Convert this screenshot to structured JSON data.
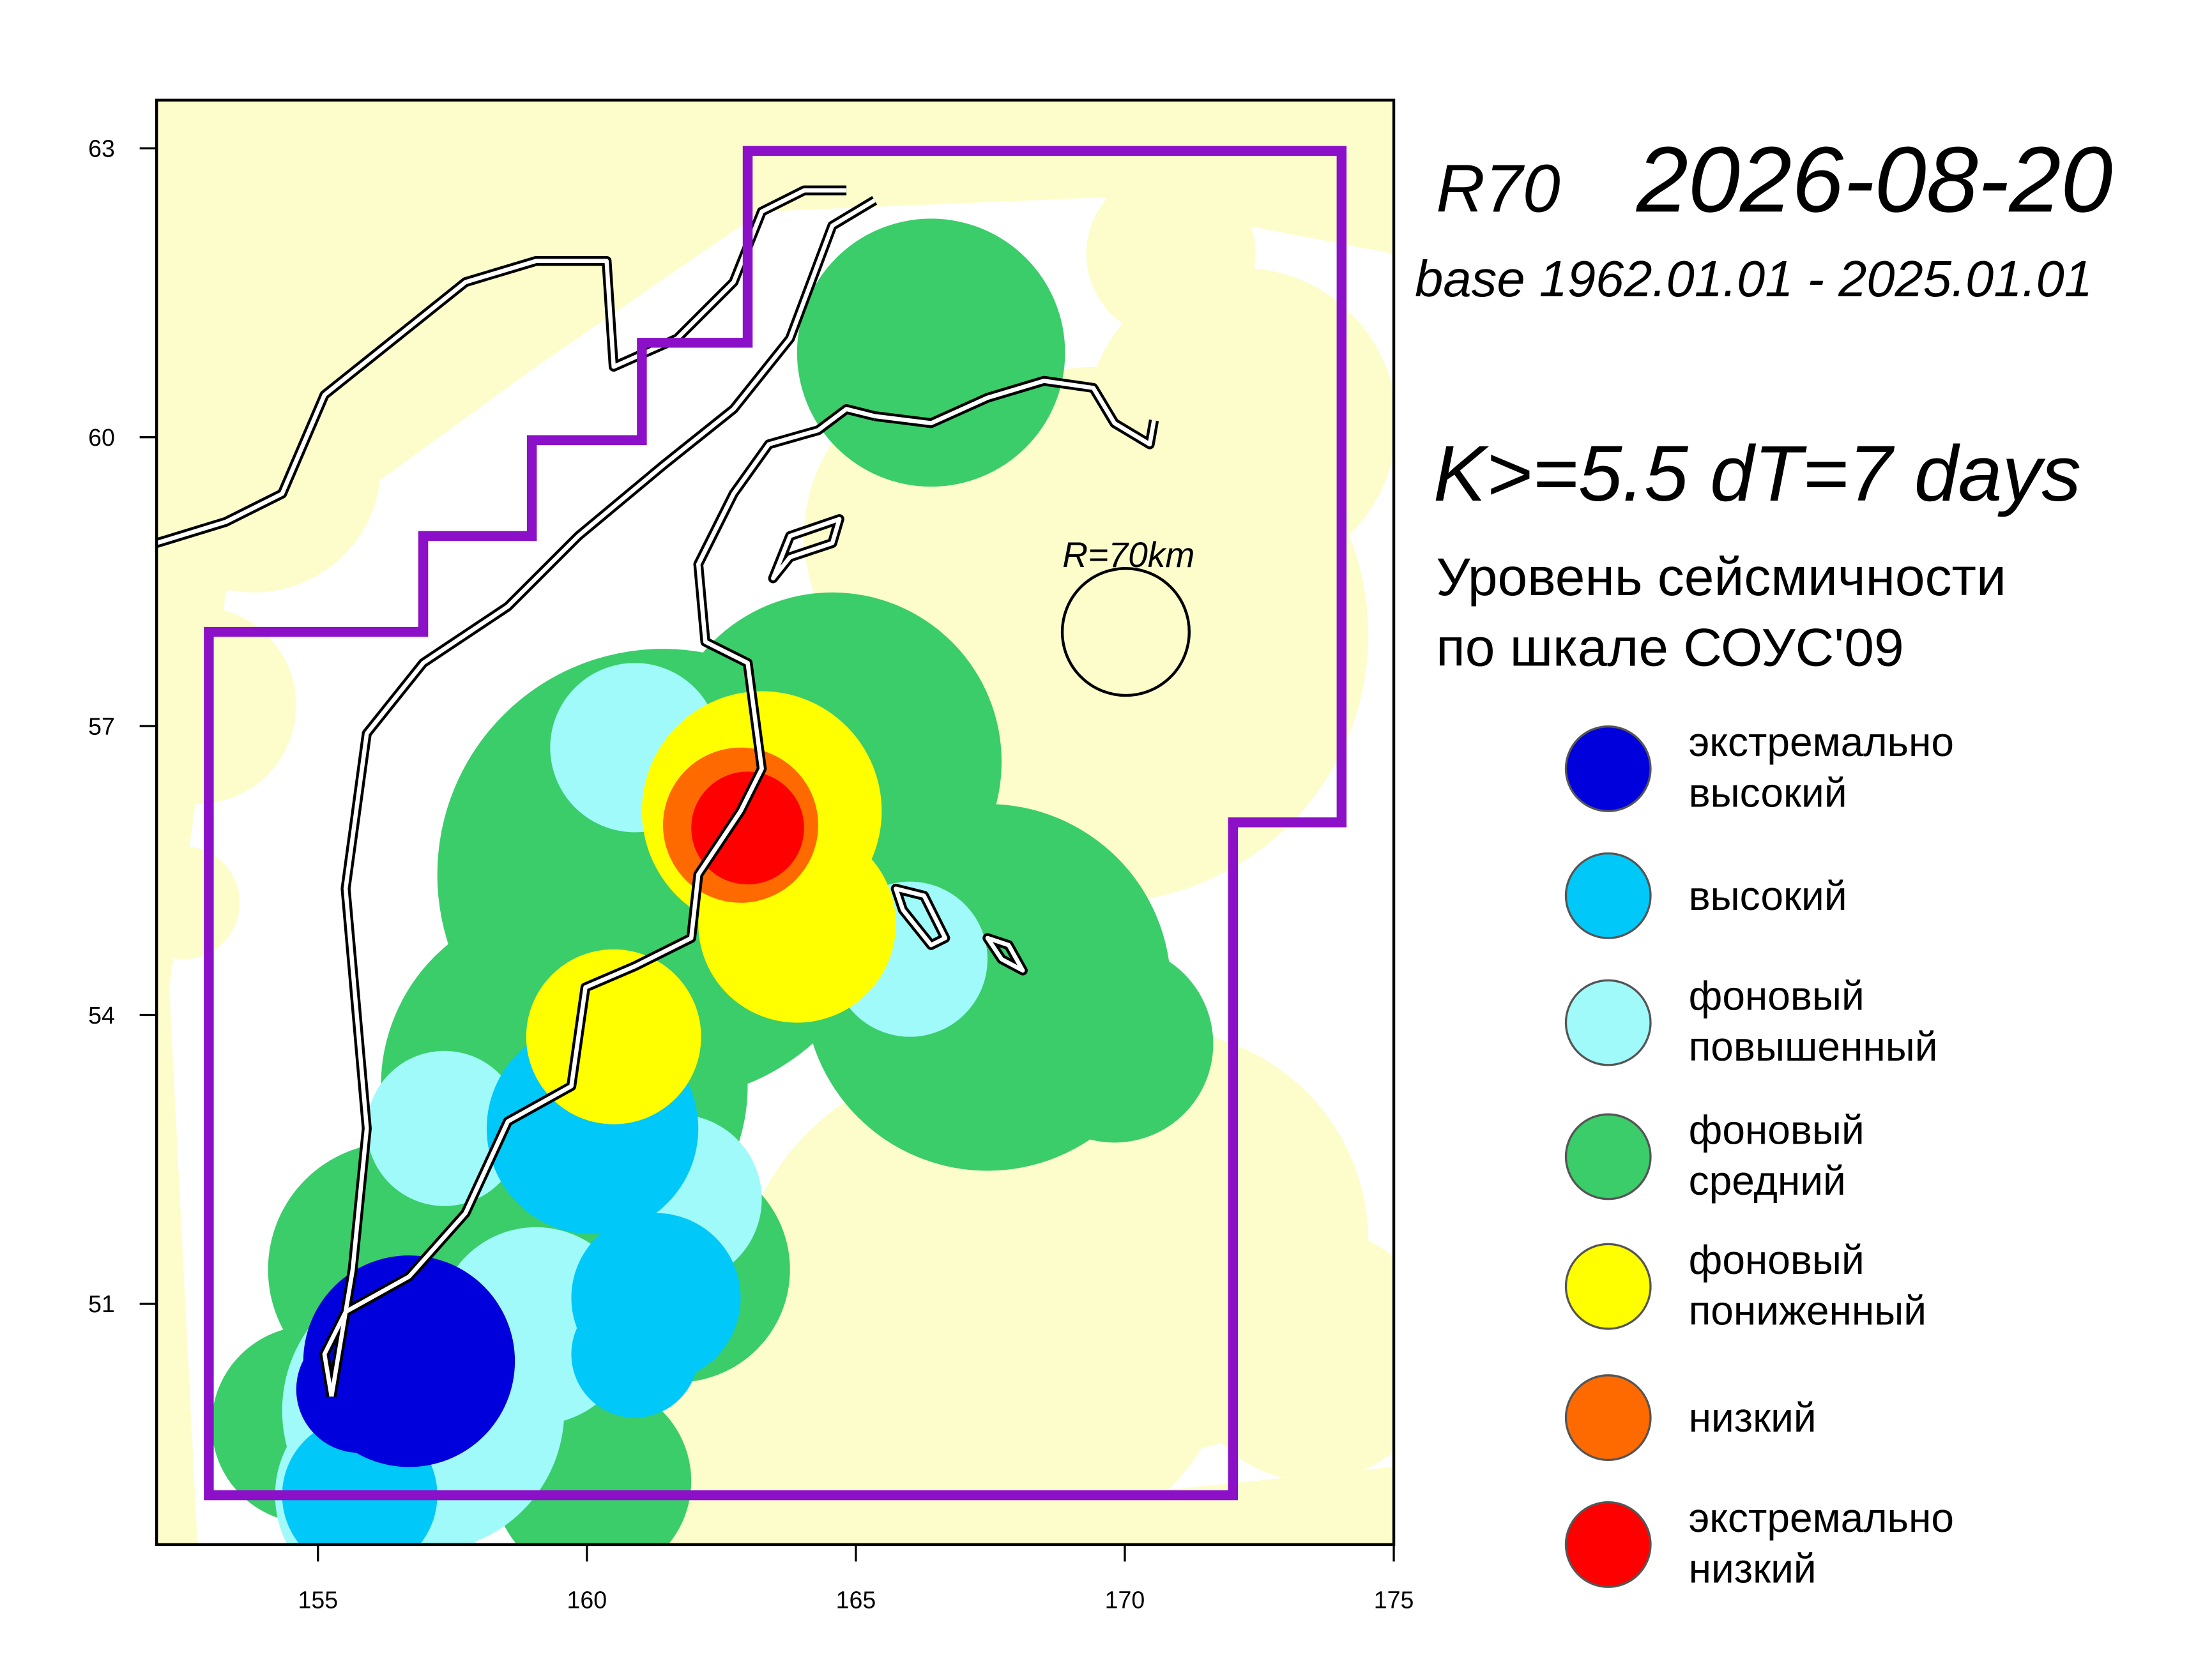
{
  "map": {
    "title_prefix": "R70",
    "date": "2026-08-20",
    "base": "base 1962.01.01 - 2025.01.01",
    "params": "K>=5.5  dT=7 days",
    "scale_title": [
      "Уровень сейсмичности",
      "по шкале СОУС'09"
    ],
    "radius_label": "R=70km",
    "xlim": [
      152,
      175
    ],
    "xticks": [
      155,
      160,
      165,
      170,
      175
    ],
    "ylim": [
      48.5,
      63.5
    ],
    "yticks": [
      51,
      54,
      57,
      60,
      63
    ],
    "region_color": "#8b10c8",
    "land_color": "#fdfdcc",
    "legend": [
      {
        "label": [
          "экстремально",
          "высокий"
        ],
        "color": "#0000dd"
      },
      {
        "label": [
          "высокий"
        ],
        "color": "#00c8f8"
      },
      {
        "label": [
          "фоновый",
          "повышенный"
        ],
        "color": "#a0fafa"
      },
      {
        "label": [
          "фоновый",
          "средний"
        ],
        "color": "#3acd6a"
      },
      {
        "label": [
          "фоновый",
          "пониженный"
        ],
        "color": "#ffff00"
      },
      {
        "label": [
          "низкий"
        ],
        "color": "#ff6a00"
      },
      {
        "label": [
          "экстремально",
          "низкий"
        ],
        "color": "#ff0000"
      }
    ]
  }
}
